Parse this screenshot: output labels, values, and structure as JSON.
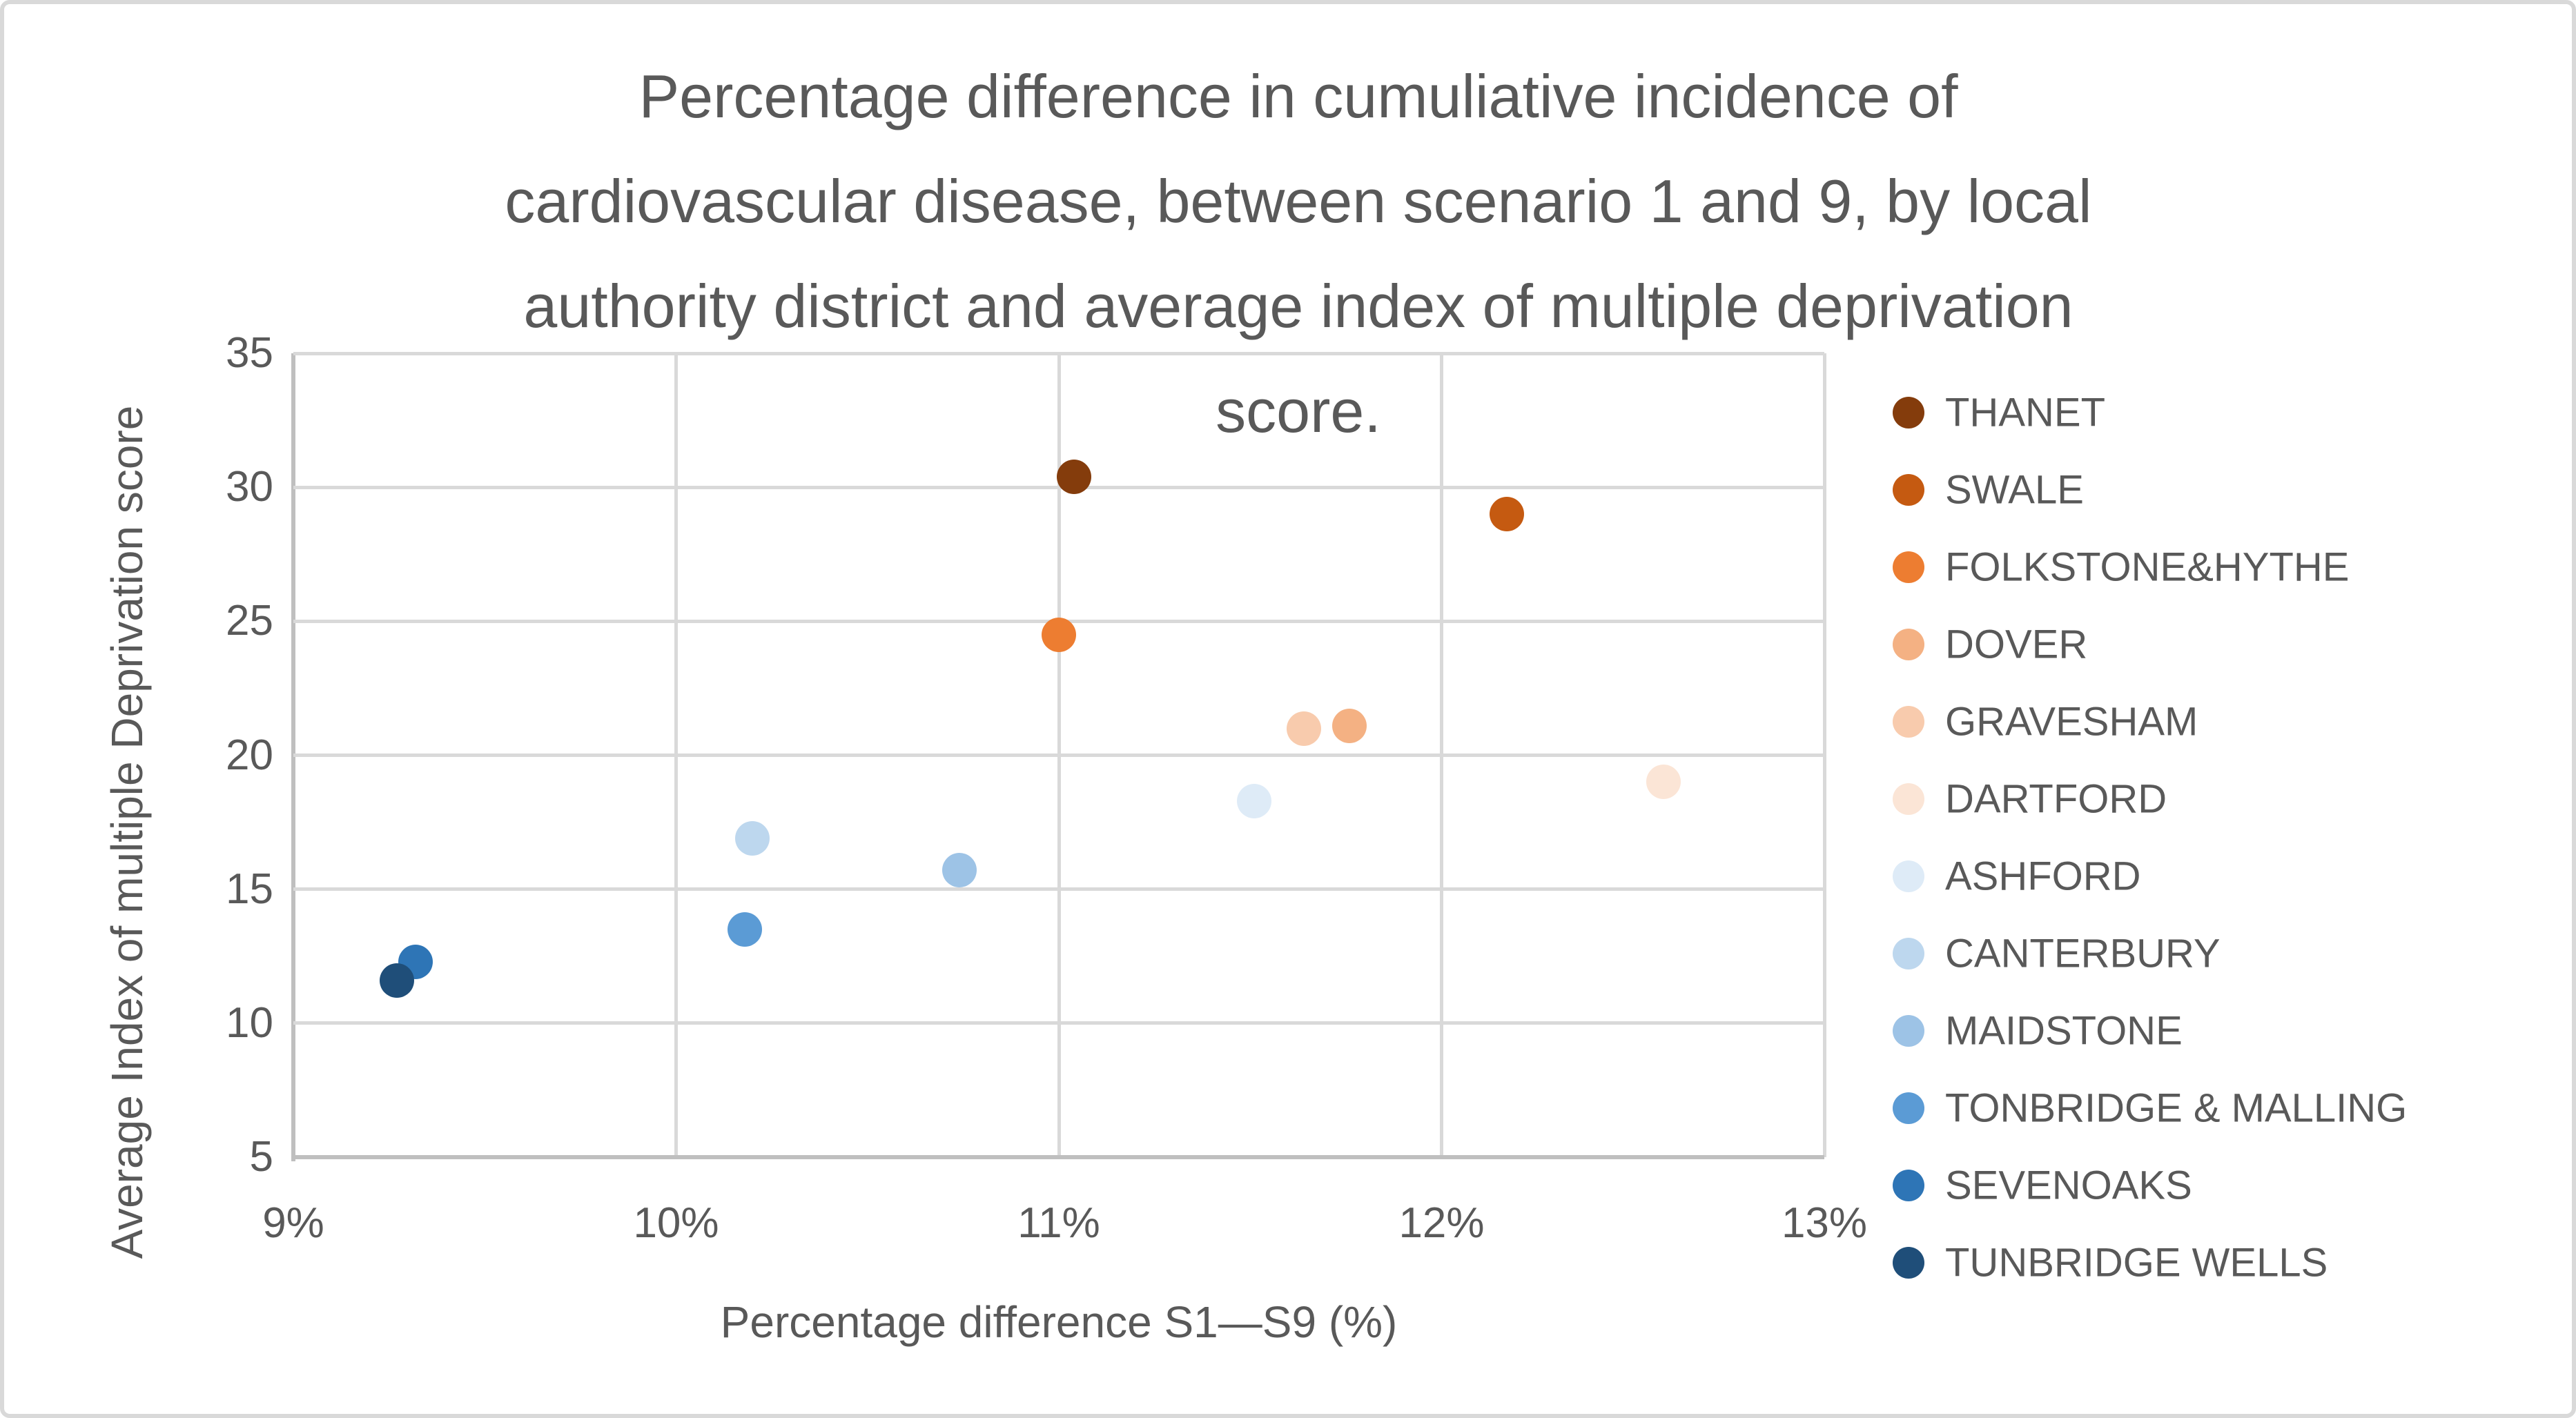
{
  "figure": {
    "kind": "scatter-chart-screenshot",
    "background": "#ffffff",
    "border_color": "#D9D9D9",
    "text_color": "#595959",
    "gridline_color": "#D9D9D9"
  },
  "chart_data": {
    "type": "scatter",
    "title": "Percentage difference in cumuliative incidence of cardiovascular disease, between scenario 1 and 9, by local authority district and average index of multiple deprivation score.",
    "title_lines": [
      "Percentage difference in cumuliative incidence of",
      "cardiovascular disease, between scenario 1 and 9, by local",
      "authority district and average index of multiple deprivation",
      "score."
    ],
    "xlabel": "Percentage difference S1—S9 (%)",
    "ylabel": "Average Index of multiple Deprivation score",
    "xlim": [
      9,
      13
    ],
    "ylim": [
      5,
      35
    ],
    "x_ticks": [
      "9%",
      "10%",
      "11%",
      "12%",
      "13%"
    ],
    "x_tick_values": [
      9,
      10,
      11,
      12,
      13
    ],
    "y_ticks": [
      "5",
      "10",
      "15",
      "20",
      "25",
      "30",
      "35"
    ],
    "y_tick_values": [
      5,
      10,
      15,
      20,
      25,
      30,
      35
    ],
    "grid": true,
    "legend_position": "right",
    "series": [
      {
        "name": "THANET",
        "color": "#843C0C",
        "x": 11.04,
        "y": 30.4
      },
      {
        "name": "SWALE",
        "color": "#C55A11",
        "x": 12.17,
        "y": 29.0
      },
      {
        "name": "FOLKSTONE&HYTHE",
        "color": "#ED7D31",
        "x": 11.0,
        "y": 24.5
      },
      {
        "name": "DOVER",
        "color": "#F4B183",
        "x": 11.76,
        "y": 21.1
      },
      {
        "name": "GRAVESHAM",
        "color": "#F8CBAD",
        "x": 11.64,
        "y": 21.0
      },
      {
        "name": "DARTFORD",
        "color": "#FBE5D6",
        "x": 12.58,
        "y": 19.0
      },
      {
        "name": "ASHFORD",
        "color": "#DEEBF7",
        "x": 11.51,
        "y": 18.3
      },
      {
        "name": "CANTERBURY",
        "color": "#BDD7EE",
        "x": 10.2,
        "y": 16.9
      },
      {
        "name": "MAIDSTONE",
        "color": "#9DC3E6",
        "x": 10.74,
        "y": 15.7
      },
      {
        "name": "TONBRIDGE & MALLING",
        "color": "#5B9BD5",
        "x": 10.18,
        "y": 13.5
      },
      {
        "name": "SEVENOAKS",
        "color": "#2E75B6",
        "x": 9.32,
        "y": 12.3
      },
      {
        "name": "TUNBRIDGE WELLS",
        "color": "#1F4E79",
        "x": 9.27,
        "y": 11.6
      }
    ]
  }
}
